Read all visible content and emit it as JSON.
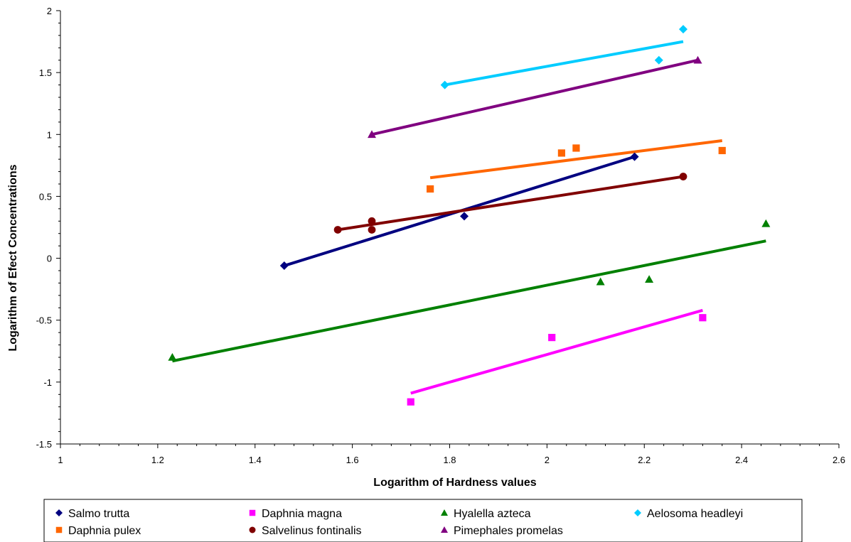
{
  "chart_data": {
    "type": "scatter",
    "title": "",
    "xlabel": "Logarithm of Hardness values",
    "ylabel": "Logarithm of Efect Concentrations",
    "xlim": [
      1,
      2.6
    ],
    "ylim": [
      -1.5,
      2
    ],
    "x_ticks": [
      1,
      1.2,
      1.4,
      1.6,
      1.8,
      2,
      2.2,
      2.4,
      2.6
    ],
    "y_ticks": [
      -1.5,
      -1,
      -0.5,
      0,
      0.5,
      1,
      1.5,
      2
    ],
    "grid": false,
    "legend_position": "bottom",
    "series": [
      {
        "name": "Salmo trutta",
        "marker": "diamond",
        "color": "#000080",
        "points": [
          [
            1.46,
            -0.06
          ],
          [
            1.83,
            0.34
          ],
          [
            2.18,
            0.82
          ]
        ],
        "trendline": [
          [
            1.46,
            -0.06
          ],
          [
            2.18,
            0.82
          ]
        ]
      },
      {
        "name": "Daphnia magna",
        "marker": "square",
        "color": "#ff00ff",
        "points": [
          [
            1.72,
            -1.16
          ],
          [
            2.01,
            -0.64
          ],
          [
            2.32,
            -0.48
          ]
        ],
        "trendline": [
          [
            1.72,
            -1.09
          ],
          [
            2.32,
            -0.42
          ]
        ]
      },
      {
        "name": "Hyalella azteca",
        "marker": "triangle",
        "color": "#008000",
        "points": [
          [
            1.23,
            -0.8
          ],
          [
            2.11,
            -0.19
          ],
          [
            2.21,
            -0.17
          ],
          [
            2.45,
            0.28
          ]
        ],
        "trendline": [
          [
            1.23,
            -0.83
          ],
          [
            2.45,
            0.14
          ]
        ]
      },
      {
        "name": "Aelosoma headleyi",
        "marker": "diamond",
        "color": "#00ccff",
        "points": [
          [
            1.79,
            1.4
          ],
          [
            2.23,
            1.6
          ],
          [
            2.28,
            1.85
          ]
        ],
        "trendline": [
          [
            1.79,
            1.4
          ],
          [
            2.28,
            1.75
          ]
        ]
      },
      {
        "name": "Daphnia pulex",
        "marker": "square",
        "color": "#ff6600",
        "points": [
          [
            1.76,
            0.56
          ],
          [
            2.03,
            0.85
          ],
          [
            2.06,
            0.89
          ],
          [
            2.36,
            0.87
          ]
        ],
        "trendline": [
          [
            1.76,
            0.65
          ],
          [
            2.36,
            0.95
          ]
        ]
      },
      {
        "name": "Salvelinus fontinalis",
        "marker": "circle",
        "color": "#800000",
        "points": [
          [
            1.57,
            0.23
          ],
          [
            1.64,
            0.3
          ],
          [
            1.64,
            0.23
          ],
          [
            2.28,
            0.66
          ]
        ],
        "trendline": [
          [
            1.57,
            0.23
          ],
          [
            2.28,
            0.66
          ]
        ]
      },
      {
        "name": "Pimephales promelas",
        "marker": "triangle",
        "color": "#800080",
        "points": [
          [
            1.64,
            1.0
          ],
          [
            2.31,
            1.6
          ]
        ],
        "trendline": [
          [
            1.64,
            1.0
          ],
          [
            2.31,
            1.6
          ]
        ]
      }
    ]
  }
}
